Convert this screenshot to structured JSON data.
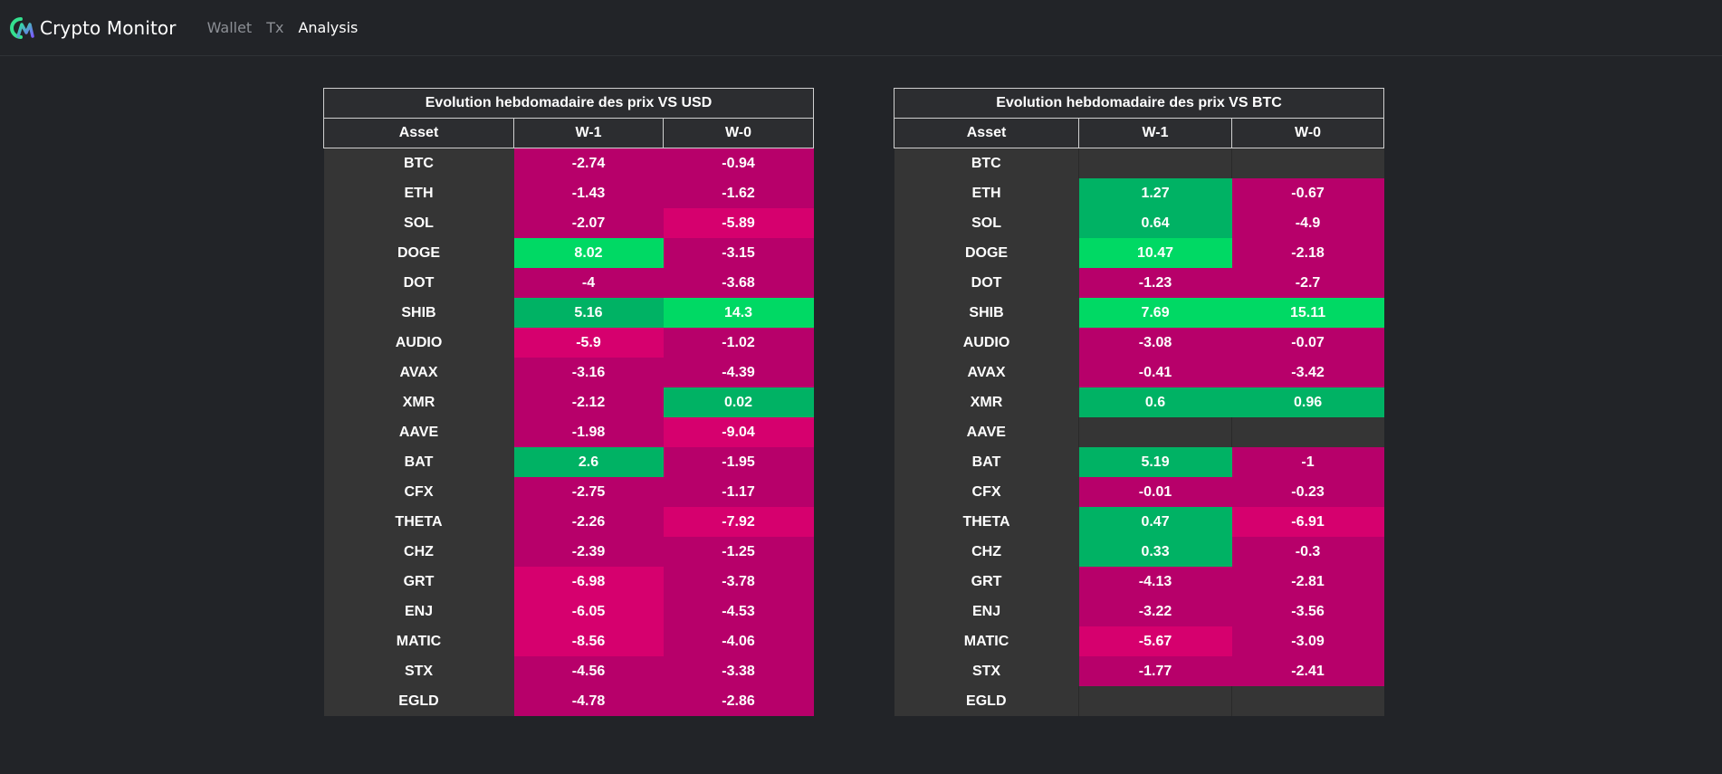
{
  "navbar": {
    "brand": "Crypto Monitor",
    "links": [
      {
        "label": "Wallet",
        "active": false
      },
      {
        "label": "Tx",
        "active": false
      },
      {
        "label": "Analysis",
        "active": true
      }
    ]
  },
  "colors": {
    "green_strong": "#00d964",
    "green": "#00b264",
    "magenta": "#b7006a",
    "magenta_strong": "#d6006e",
    "asset_bg": "#353535"
  },
  "tables": [
    {
      "title": "Evolution hebdomadaire des prix VS USD",
      "headers": [
        "Asset",
        "W-1",
        "W-0"
      ],
      "rows": [
        {
          "asset": "BTC",
          "w1": -2.74,
          "w0": -0.94
        },
        {
          "asset": "ETH",
          "w1": -1.43,
          "w0": -1.62
        },
        {
          "asset": "SOL",
          "w1": -2.07,
          "w0": -5.89
        },
        {
          "asset": "DOGE",
          "w1": 8.02,
          "w0": -3.15
        },
        {
          "asset": "DOT",
          "w1": -4,
          "w0": -3.68
        },
        {
          "asset": "SHIB",
          "w1": 5.16,
          "w0": 14.3
        },
        {
          "asset": "AUDIO",
          "w1": -5.9,
          "w0": -1.02
        },
        {
          "asset": "AVAX",
          "w1": -3.16,
          "w0": -4.39
        },
        {
          "asset": "XMR",
          "w1": -2.12,
          "w0": 0.02
        },
        {
          "asset": "AAVE",
          "w1": -1.98,
          "w0": -9.04
        },
        {
          "asset": "BAT",
          "w1": 2.6,
          "w0": -1.95
        },
        {
          "asset": "CFX",
          "w1": -2.75,
          "w0": -1.17
        },
        {
          "asset": "THETA",
          "w1": -2.26,
          "w0": -7.92
        },
        {
          "asset": "CHZ",
          "w1": -2.39,
          "w0": -1.25
        },
        {
          "asset": "GRT",
          "w1": -6.98,
          "w0": -3.78
        },
        {
          "asset": "ENJ",
          "w1": -6.05,
          "w0": -4.53
        },
        {
          "asset": "MATIC",
          "w1": -8.56,
          "w0": -4.06
        },
        {
          "asset": "STX",
          "w1": -4.56,
          "w0": -3.38
        },
        {
          "asset": "EGLD",
          "w1": -4.78,
          "w0": -2.86
        }
      ]
    },
    {
      "title": "Evolution hebdomadaire des prix VS BTC",
      "headers": [
        "Asset",
        "W-1",
        "W-0"
      ],
      "rows": [
        {
          "asset": "BTC",
          "w1": null,
          "w0": null
        },
        {
          "asset": "ETH",
          "w1": 1.27,
          "w0": -0.67
        },
        {
          "asset": "SOL",
          "w1": 0.64,
          "w0": -4.9
        },
        {
          "asset": "DOGE",
          "w1": 10.47,
          "w0": -2.18
        },
        {
          "asset": "DOT",
          "w1": -1.23,
          "w0": -2.7
        },
        {
          "asset": "SHIB",
          "w1": 7.69,
          "w0": 15.11
        },
        {
          "asset": "AUDIO",
          "w1": -3.08,
          "w0": -0.07
        },
        {
          "asset": "AVAX",
          "w1": -0.41,
          "w0": -3.42
        },
        {
          "asset": "XMR",
          "w1": 0.6,
          "w0": 0.96
        },
        {
          "asset": "AAVE",
          "w1": null,
          "w0": null
        },
        {
          "asset": "BAT",
          "w1": 5.19,
          "w0": -1
        },
        {
          "asset": "CFX",
          "w1": -0.01,
          "w0": -0.23
        },
        {
          "asset": "THETA",
          "w1": 0.47,
          "w0": -6.91
        },
        {
          "asset": "CHZ",
          "w1": 0.33,
          "w0": -0.3
        },
        {
          "asset": "GRT",
          "w1": -4.13,
          "w0": -2.81
        },
        {
          "asset": "ENJ",
          "w1": -3.22,
          "w0": -3.56
        },
        {
          "asset": "MATIC",
          "w1": -5.67,
          "w0": -3.09
        },
        {
          "asset": "STX",
          "w1": -1.77,
          "w0": -2.41
        },
        {
          "asset": "EGLD",
          "w1": null,
          "w0": null
        }
      ]
    }
  ]
}
